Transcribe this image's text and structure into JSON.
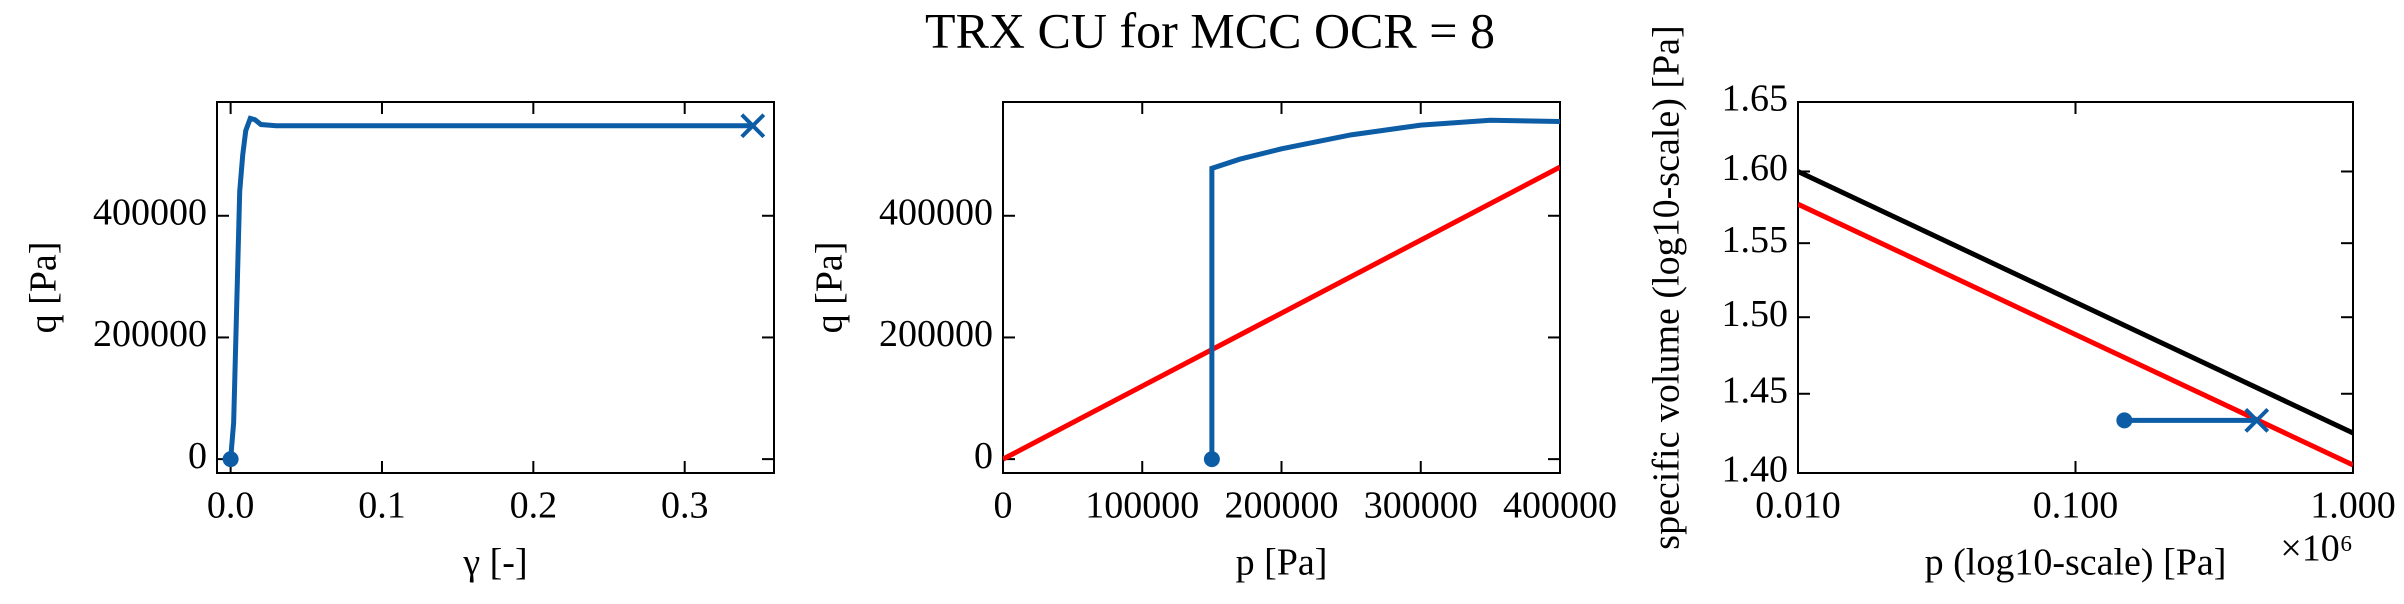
{
  "title": "TRX CU for MCC OCR = 8",
  "chart_data": [
    {
      "type": "line",
      "xlabel": "γ [-]",
      "ylabel": "q [Pa]",
      "xlim": [
        -0.009,
        0.359
      ],
      "ylim": [
        -22800,
        587000
      ],
      "xticks": [
        {
          "value": 0,
          "label": "0.0"
        },
        0.1,
        0.2,
        0.3
      ],
      "yticks": [
        0,
        200000,
        400000
      ],
      "series": [
        {
          "color": "#0c5da5",
          "marker_start": "o",
          "marker_end": "x",
          "x": [
            0,
            0.002,
            0.004,
            0.006,
            0.008,
            0.01,
            0.013,
            0.016,
            0.02,
            0.03,
            0.1,
            0.2,
            0.3,
            0.345
          ],
          "values": [
            0,
            60000,
            250000,
            440000,
            500000,
            540000,
            560000,
            558000,
            550000,
            548000,
            548000,
            548000,
            548000,
            548000
          ]
        }
      ]
    },
    {
      "type": "line",
      "xlabel": "p [Pa]",
      "ylabel": "q [Pa]",
      "xlim": [
        0,
        400000
      ],
      "ylim": [
        -22800,
        587000
      ],
      "xticks": [
        0,
        100000,
        200000,
        300000,
        400000
      ],
      "yticks": [
        0,
        200000,
        400000
      ],
      "series": [
        {
          "color": "#ff0000",
          "x": [
            0,
            400000
          ],
          "values": [
            0,
            480000
          ]
        },
        {
          "color": "#0c5da5",
          "marker_start": "o",
          "x": [
            150000,
            150000,
            150000,
            170000,
            200000,
            250000,
            300000,
            350000,
            400000
          ],
          "values": [
            0,
            100000,
            478000,
            493000,
            510000,
            533000,
            549000,
            557000,
            555000
          ]
        }
      ]
    },
    {
      "type": "line",
      "xlabel": "p (log10-scale) [Pa]",
      "ylabel": "specific volume (log10-scale) [Pa]",
      "x_offset_label": "×10⁶",
      "xscale": "log",
      "yscale": "log",
      "xlim": [
        0.01,
        1
      ],
      "ylim": [
        1.4,
        1.65
      ],
      "xticks": [
        {
          "value": 0.01,
          "label": "0.010"
        },
        {
          "value": 0.1,
          "label": "0.100"
        },
        {
          "value": 1,
          "label": "1.000"
        }
      ],
      "yticks": [
        {
          "value": 1.4,
          "label": "1.40"
        },
        1.45,
        {
          "value": 1.5,
          "label": "1.50"
        },
        1.55,
        {
          "value": 1.6,
          "label": "1.60"
        },
        1.65
      ],
      "series": [
        {
          "color": "#000000",
          "x": [
            0.01,
            1
          ],
          "values": [
            1.6,
            1.425
          ]
        },
        {
          "color": "#ff0000",
          "x": [
            0.01,
            1
          ],
          "values": [
            1.577,
            1.405
          ]
        },
        {
          "color": "#0c5da5",
          "marker_start": "o",
          "marker_end": "x",
          "x": [
            0.15,
            0.45
          ],
          "values": [
            1.433,
            1.433
          ]
        }
      ]
    }
  ]
}
